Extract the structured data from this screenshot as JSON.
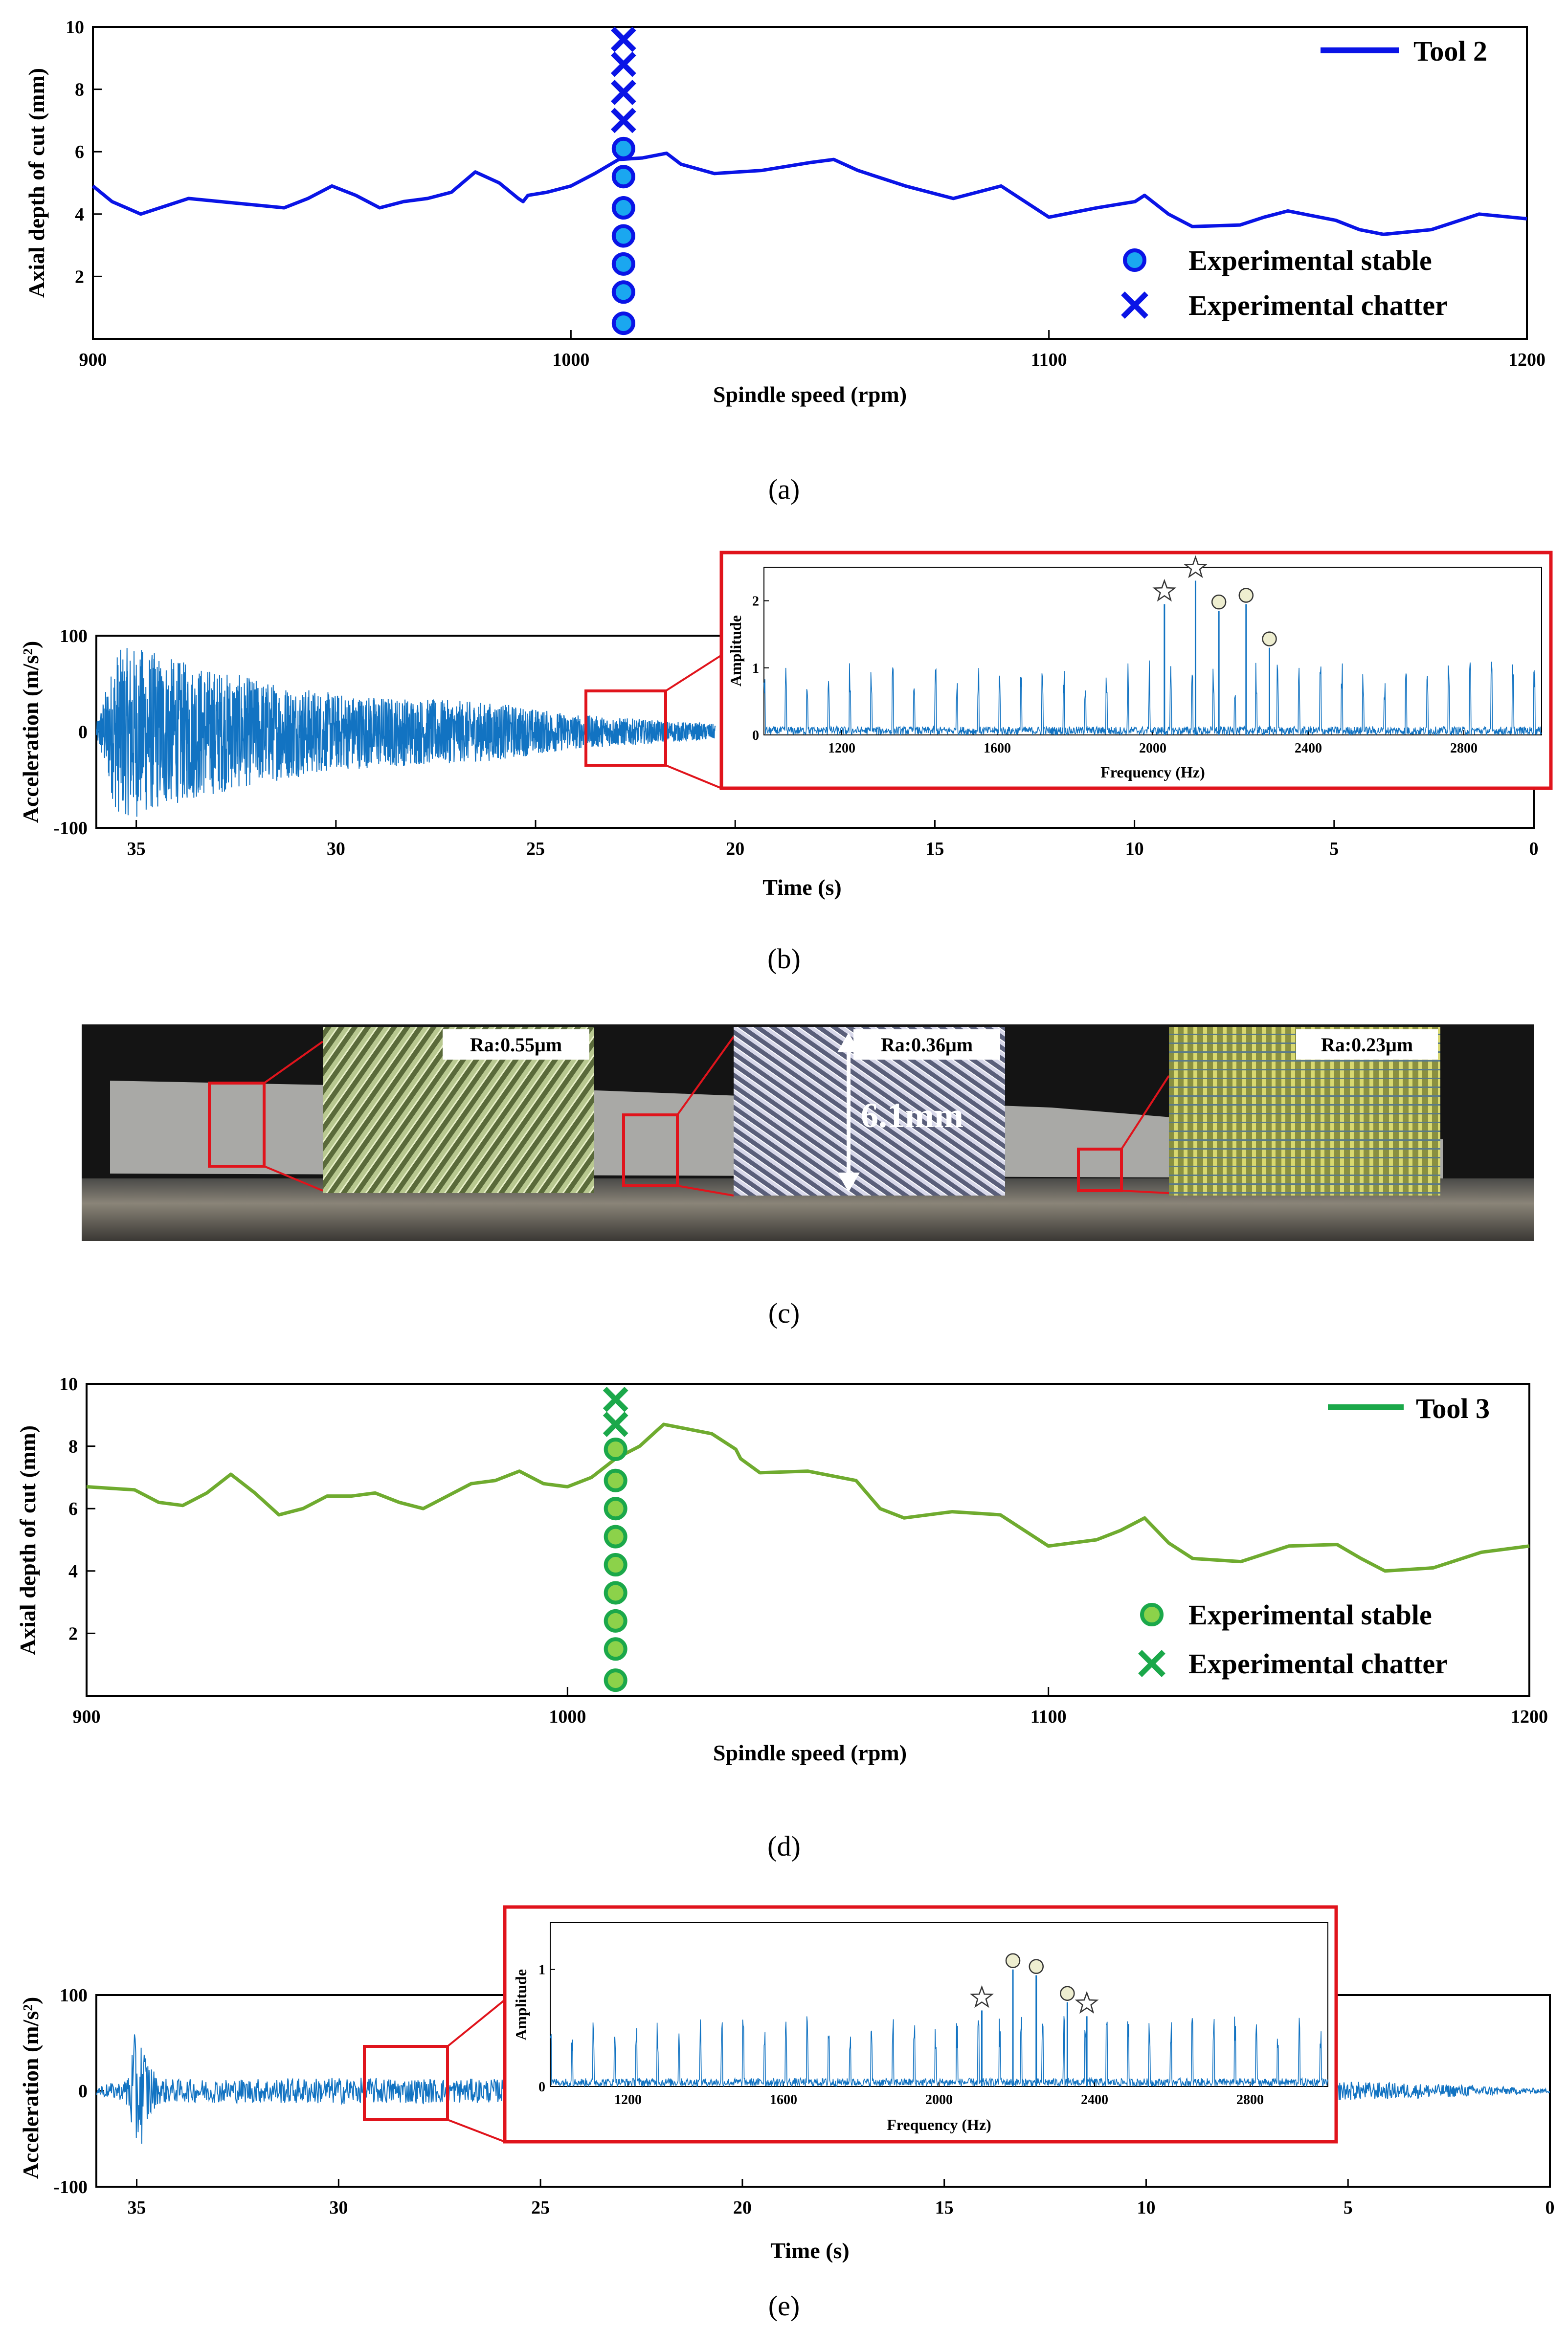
{
  "colors": {
    "tool2": "#0a14e6",
    "tool2_marker_fill": "#1aa7f0",
    "tool3": "#6fab2f",
    "tool3_marker": "#1ba84a",
    "tool3_marker_fill": "#8cd24a",
    "signal": "#1273c2",
    "highlight": "#e0141c"
  },
  "chart_data": [
    {
      "id": "a",
      "type": "line",
      "caption": "(a)",
      "xlabel": "Spindle speed (rpm)",
      "ylabel": "Axial depth of cut (mm)",
      "xlim": [
        900,
        1200
      ],
      "ylim": [
        0,
        10
      ],
      "xticks": [
        900,
        1000,
        1100,
        1200
      ],
      "yticks": [
        2,
        4,
        6,
        8,
        10
      ],
      "legend_line": "Tool 2",
      "legend_stable": "Experimental stable",
      "legend_chatter": "Experimental chatter",
      "series": {
        "name": "Tool 2",
        "x": [
          900,
          904,
          910,
          920,
          930,
          940,
          945,
          950,
          955,
          960,
          965,
          970,
          975,
          980,
          985,
          989,
          990,
          991,
          995,
          1000,
          1005,
          1010,
          1015,
          1020,
          1023,
          1030,
          1040,
          1050,
          1055,
          1060,
          1070,
          1080,
          1090,
          1100,
          1110,
          1118,
          1120,
          1125,
          1130,
          1140,
          1145,
          1150,
          1160,
          1165,
          1170,
          1180,
          1190,
          1200
        ],
        "y": [
          4.9,
          4.4,
          4.0,
          4.5,
          4.35,
          4.2,
          4.5,
          4.9,
          4.6,
          4.2,
          4.4,
          4.5,
          4.7,
          5.35,
          5.0,
          4.5,
          4.4,
          4.6,
          4.7,
          4.9,
          5.3,
          5.75,
          5.8,
          5.95,
          5.6,
          5.3,
          5.4,
          5.65,
          5.75,
          5.4,
          4.9,
          4.5,
          4.9,
          3.9,
          4.2,
          4.4,
          4.6,
          4.0,
          3.6,
          3.65,
          3.9,
          4.1,
          3.8,
          3.5,
          3.35,
          3.5,
          4.0,
          3.85
        ]
      },
      "stable": {
        "x": 1011,
        "y": [
          0.5,
          1.5,
          2.4,
          3.3,
          4.2,
          5.2,
          6.1
        ]
      },
      "chatter": {
        "x": 1011,
        "y": [
          7.0,
          7.9,
          8.8,
          9.6
        ]
      }
    },
    {
      "id": "b",
      "type": "line",
      "caption": "(b)",
      "xlabel": "Time (s)",
      "ylabel": "Acceleration (m/s²)",
      "xlim": [
        36,
        0
      ],
      "ylim": [
        -100,
        100
      ],
      "xticks": [
        35,
        30,
        25,
        20,
        15,
        10,
        5,
        0
      ],
      "yticks": [
        -100,
        0,
        100
      ],
      "envelope": {
        "t": [
          36,
          35.5,
          35,
          34,
          33,
          32,
          30,
          28,
          26,
          24,
          22,
          20.5
        ],
        "amp": [
          8,
          85,
          90,
          75,
          65,
          55,
          40,
          35,
          30,
          18,
          12,
          8
        ]
      },
      "inset": {
        "xlabel": "Frequency (Hz)",
        "ylabel": "Amplitude",
        "xlim": [
          1000,
          3000
        ],
        "ylim": [
          0,
          2.5
        ],
        "xticks": [
          1200,
          1600,
          2000,
          2400,
          2800
        ],
        "yticks": [
          0,
          1,
          2
        ],
        "peaks": [
          {
            "f": 2030,
            "a": 1.95,
            "marker": "star"
          },
          {
            "f": 2110,
            "a": 2.3,
            "marker": "star"
          },
          {
            "f": 2170,
            "a": 1.85,
            "marker": "circle"
          },
          {
            "f": 2240,
            "a": 1.95,
            "marker": "circle"
          },
          {
            "f": 2300,
            "a": 1.3,
            "marker": "circle"
          }
        ]
      }
    },
    {
      "id": "d",
      "type": "line",
      "caption": "(d)",
      "xlabel": "Spindle speed (rpm)",
      "ylabel": "Axial depth of cut (mm)",
      "xlim": [
        900,
        1200
      ],
      "ylim": [
        0,
        10
      ],
      "xticks": [
        900,
        1000,
        1100,
        1200
      ],
      "yticks": [
        2,
        4,
        6,
        8,
        10
      ],
      "legend_line": "Tool 3",
      "legend_stable": "Experimental stable",
      "legend_chatter": "Experimental chatter",
      "series": {
        "name": "Tool 3",
        "x": [
          900,
          905,
          910,
          915,
          920,
          925,
          930,
          935,
          940,
          945,
          950,
          955,
          960,
          965,
          970,
          975,
          980,
          985,
          990,
          995,
          1000,
          1005,
          1010,
          1015,
          1020,
          1030,
          1035,
          1036,
          1040,
          1050,
          1060,
          1065,
          1070,
          1080,
          1090,
          1100,
          1110,
          1115,
          1120,
          1125,
          1130,
          1140,
          1150,
          1160,
          1165,
          1170,
          1180,
          1190,
          1200
        ],
        "y": [
          6.7,
          6.65,
          6.6,
          6.2,
          6.1,
          6.5,
          7.1,
          6.5,
          5.8,
          6.0,
          6.4,
          6.4,
          6.5,
          6.2,
          6.0,
          6.4,
          6.8,
          6.9,
          7.2,
          6.8,
          6.7,
          7.0,
          7.6,
          8.0,
          8.7,
          8.4,
          7.9,
          7.6,
          7.15,
          7.2,
          6.9,
          6.0,
          5.7,
          5.9,
          5.8,
          4.8,
          5.0,
          5.3,
          5.7,
          4.9,
          4.4,
          4.3,
          4.8,
          4.85,
          4.4,
          4.0,
          4.1,
          4.6,
          4.8
        ]
      },
      "stable": {
        "x": 1010,
        "y": [
          0.5,
          1.5,
          2.4,
          3.3,
          4.2,
          5.1,
          6.0,
          6.9,
          7.9
        ]
      },
      "chatter": {
        "x": 1010,
        "y": [
          8.7,
          9.5
        ]
      }
    },
    {
      "id": "e",
      "type": "line",
      "caption": "(e)",
      "xlabel": "Time (s)",
      "ylabel": "Acceleration (m/s²)",
      "xlim": [
        36,
        0
      ],
      "ylim": [
        -100,
        100
      ],
      "xticks": [
        35,
        30,
        25,
        20,
        15,
        10,
        5,
        0
      ],
      "yticks": [
        -100,
        0,
        100
      ],
      "envelope": {
        "t": [
          36,
          35.3,
          35.0,
          34.5,
          34,
          30,
          25,
          20,
          15,
          10,
          5,
          2,
          0
        ],
        "amp": [
          6,
          10,
          70,
          14,
          12,
          14,
          12,
          12,
          12,
          12,
          10,
          6,
          2
        ]
      },
      "inset": {
        "xlabel": "Frequency (Hz)",
        "ylabel": "Amplitude",
        "xlim": [
          1000,
          3000
        ],
        "ylim": [
          0,
          1.4
        ],
        "xticks": [
          1200,
          1600,
          2000,
          2400,
          2800
        ],
        "yticks": [
          0,
          1
        ],
        "peaks": [
          {
            "f": 2110,
            "a": 0.65,
            "marker": "star"
          },
          {
            "f": 2190,
            "a": 1.0,
            "marker": "circle"
          },
          {
            "f": 2250,
            "a": 0.95,
            "marker": "circle"
          },
          {
            "f": 2330,
            "a": 0.72,
            "marker": "circle"
          },
          {
            "f": 2380,
            "a": 0.6,
            "marker": "star"
          }
        ]
      }
    }
  ],
  "photo": {
    "caption": "(c)",
    "ra_labels": [
      "Ra:0.55μm",
      "Ra:0.36μm",
      "Ra:0.23μm"
    ],
    "depth_label": "6.1mm"
  }
}
